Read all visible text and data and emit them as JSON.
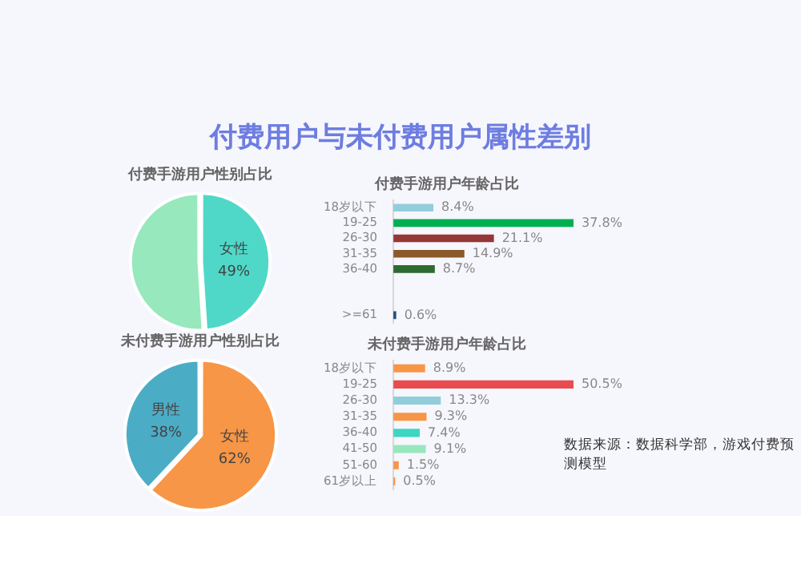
{
  "chart_data": [
    {
      "type": "other",
      "title": "付费用户与未付费用户属性差别",
      "annotations": [
        "数据来源：数据科学部，游戏付费预测模型"
      ]
    },
    {
      "type": "pie",
      "title": "付费手游用户性别占比",
      "categories": [
        "女性",
        null
      ],
      "values": [
        49,
        51
      ],
      "colors": [
        "#4fd8c8",
        "#97e8bd"
      ],
      "value_labels": [
        "49%",
        null
      ],
      "legend": false
    },
    {
      "type": "bar",
      "orientation": "horizontal",
      "title": "付费手游用户年龄占比",
      "categories": [
        "18岁以下",
        "19-25",
        "26-30",
        "31-35",
        "36-40",
        null,
        null,
        ">=61"
      ],
      "values": [
        8.4,
        37.8,
        21.1,
        14.9,
        8.7,
        null,
        null,
        0.6
      ],
      "colors": [
        "#92cddc",
        "#00b050",
        "#953735",
        "#8b5a2b",
        "#2e6b30",
        "#cccccc",
        "#cccccc",
        "#1f4e79"
      ],
      "value_labels": [
        "8.4%",
        "37.8%",
        "21.1%",
        "14.9%",
        "8.7%",
        null,
        null,
        "0.6%"
      ],
      "tick_labels": "y",
      "legend": false
    },
    {
      "type": "pie",
      "title": "未付费手游用户性别占比",
      "categories": [
        "女性",
        "男性"
      ],
      "values": [
        62,
        38
      ],
      "colors": [
        "#f79646",
        "#4bacc6"
      ],
      "value_labels": [
        "62%",
        "38%"
      ],
      "legend": false
    },
    {
      "type": "bar",
      "orientation": "horizontal",
      "title": "未付费手游用户年龄占比",
      "categories": [
        "18岁以下",
        "19-25",
        "26-30",
        "31-35",
        "36-40",
        "41-50",
        "51-60",
        "61岁以上"
      ],
      "values": [
        8.9,
        50.5,
        13.3,
        9.3,
        7.4,
        9.1,
        1.5,
        0.5
      ],
      "colors": [
        "#f79646",
        "#e84c4f",
        "#92cddc",
        "#f79646",
        "#3dd6c0",
        "#97e8bd",
        "#f79646",
        "#f79646"
      ],
      "value_labels": [
        "8.9%",
        "50.5%",
        "13.3%",
        "9.3%",
        "7.4%",
        "9.1%",
        "1.5%",
        "0.5%"
      ],
      "tick_labels": "y",
      "legend": false
    }
  ]
}
